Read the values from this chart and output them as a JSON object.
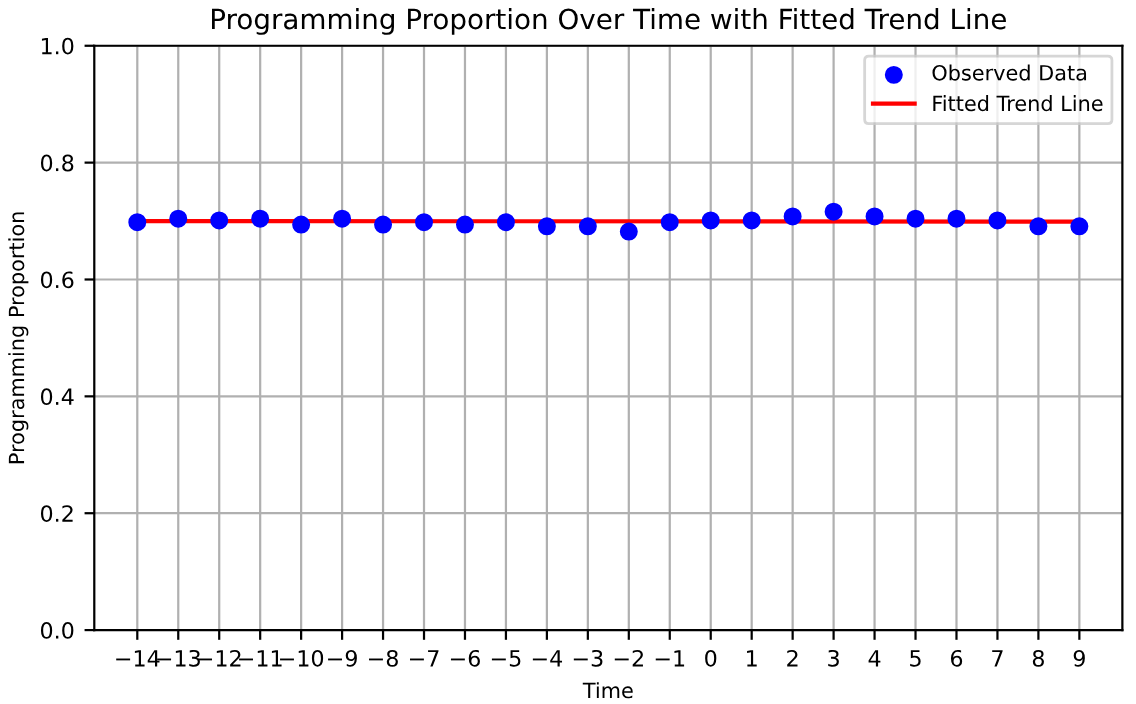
{
  "chart_data": {
    "type": "scatter",
    "title": "Programming Proportion Over Time with Fitted Trend Line",
    "xlabel": "Time",
    "ylabel": "Programming Proportion",
    "x": [
      -14,
      -13,
      -12,
      -11,
      -10,
      -9,
      -8,
      -7,
      -6,
      -5,
      -4,
      -3,
      -2,
      -1,
      0,
      1,
      2,
      3,
      4,
      5,
      6,
      7,
      8,
      9
    ],
    "series": [
      {
        "name": "Observed Data",
        "color": "#0000ff",
        "marker": "circle",
        "values": [
          0.698,
          0.704,
          0.701,
          0.704,
          0.694,
          0.704,
          0.694,
          0.698,
          0.694,
          0.698,
          0.691,
          0.691,
          0.682,
          0.698,
          0.701,
          0.701,
          0.708,
          0.716,
          0.708,
          0.704,
          0.704,
          0.701,
          0.691,
          0.691
        ]
      },
      {
        "name": "Fitted Trend Line",
        "type": "line",
        "color": "#ff0000",
        "x": [
          -14,
          9
        ],
        "values": [
          0.7,
          0.699
        ]
      }
    ],
    "xlim": [
      -15.05,
      10.05
    ],
    "ylim": [
      0,
      1.0
    ],
    "xticks": [
      {
        "value": -14,
        "label": "−14"
      },
      {
        "value": -13,
        "label": "−13"
      },
      {
        "value": -12,
        "label": "−12"
      },
      {
        "value": -11,
        "label": "−11"
      },
      {
        "value": -10,
        "label": "−10"
      },
      {
        "value": -9,
        "label": "−9"
      },
      {
        "value": -8,
        "label": "−8"
      },
      {
        "value": -7,
        "label": "−7"
      },
      {
        "value": -6,
        "label": "−6"
      },
      {
        "value": -5,
        "label": "−5"
      },
      {
        "value": -4,
        "label": "−4"
      },
      {
        "value": -3,
        "label": "−3"
      },
      {
        "value": -2,
        "label": "−2"
      },
      {
        "value": -1,
        "label": "−1"
      },
      0,
      1,
      2,
      3,
      4,
      5,
      6,
      7,
      8,
      9
    ],
    "yticks": [
      {
        "value": 0,
        "label": "0.0"
      },
      {
        "value": 0.2,
        "label": "0.2"
      },
      {
        "value": 0.4,
        "label": "0.4"
      },
      {
        "value": 0.6,
        "label": "0.6"
      },
      {
        "value": 0.8,
        "label": "0.8"
      },
      {
        "value": 1.0,
        "label": "1.0"
      }
    ],
    "grid": true,
    "legend": "top right"
  }
}
